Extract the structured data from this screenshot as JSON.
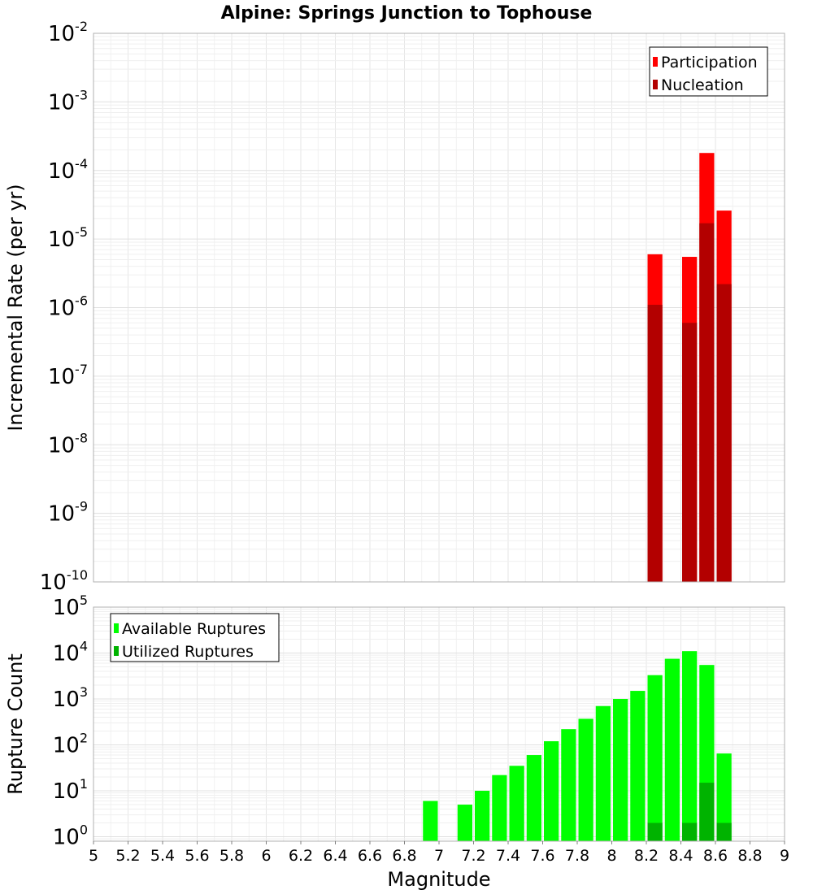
{
  "title": "Alpine: Springs Junction to Tophouse",
  "chart_data": [
    {
      "type": "bar",
      "name": "rate-panel",
      "ylabel": "Incremental Rate (per yr)",
      "yscale": "log",
      "ylim": [
        1e-10,
        0.01
      ],
      "y_tick_exponents": [
        "-10",
        "-9",
        "-8",
        "-7",
        "-6",
        "-5",
        "-4",
        "-3",
        "-2"
      ],
      "y_tick_base": "10",
      "xlim": [
        5,
        9
      ],
      "legend": {
        "placement": "top-right"
      },
      "series": [
        {
          "name": "Participation",
          "color": "#ff0000",
          "x": [
            8.25,
            8.45,
            8.55,
            8.65
          ],
          "values": [
            6e-06,
            5.5e-06,
            0.00018,
            2.6e-05
          ]
        },
        {
          "name": "Nucleation",
          "color": "#b30000",
          "x": [
            8.25,
            8.45,
            8.55,
            8.65
          ],
          "values": [
            1.1e-06,
            6e-07,
            1.7e-05,
            2.2e-06
          ]
        }
      ]
    },
    {
      "type": "bar",
      "name": "count-panel",
      "xlabel": "Magnitude",
      "ylabel": "Rupture Count",
      "yscale": "log",
      "ylim": [
        0.8,
        100000
      ],
      "y_tick_exponents": [
        "0",
        "1",
        "2",
        "3",
        "4",
        "5"
      ],
      "y_tick_base": "10",
      "xlim": [
        5,
        9
      ],
      "x_ticks": [
        "5",
        "5.2",
        "5.4",
        "5.6",
        "5.8",
        "6",
        "6.2",
        "6.4",
        "6.6",
        "6.8",
        "7",
        "7.2",
        "7.4",
        "7.6",
        "7.8",
        "8",
        "8.2",
        "8.4",
        "8.6",
        "8.8",
        "9"
      ],
      "legend": {
        "placement": "top-left"
      },
      "series": [
        {
          "name": "Available Ruptures",
          "color": "#00ff00",
          "x": [
            6.95,
            7.15,
            7.25,
            7.35,
            7.45,
            7.55,
            7.65,
            7.75,
            7.85,
            7.95,
            8.05,
            8.15,
            8.25,
            8.35,
            8.45,
            8.55,
            8.65
          ],
          "values": [
            6,
            5,
            10,
            22,
            35,
            60,
            120,
            220,
            370,
            700,
            1000,
            1500,
            3300,
            7500,
            11000,
            5500,
            65
          ]
        },
        {
          "name": "Utilized Ruptures",
          "color": "#00b300",
          "x": [
            8.25,
            8.45,
            8.55,
            8.65
          ],
          "values": [
            2,
            2,
            15,
            2
          ]
        }
      ]
    }
  ]
}
